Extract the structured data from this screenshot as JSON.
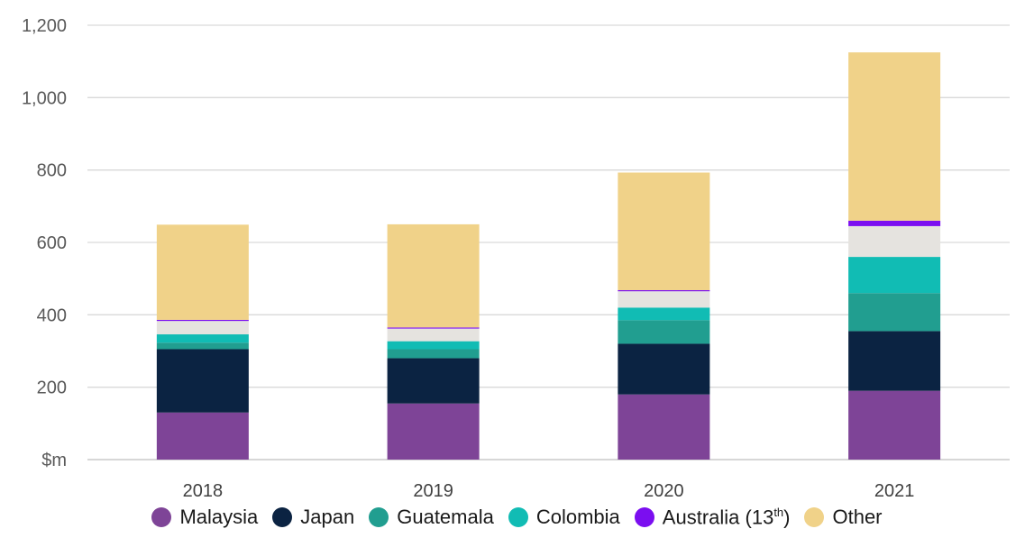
{
  "chart_data": {
    "type": "bar",
    "stacked": true,
    "categories": [
      "2018",
      "2019",
      "2020",
      "2021"
    ],
    "y_tick_labels": [
      "$m",
      "200",
      "400",
      "600",
      "800",
      "1,000",
      "1,200"
    ],
    "y_ticks": [
      0,
      200,
      400,
      600,
      800,
      1000,
      1200
    ],
    "ylim": [
      0,
      1200
    ],
    "grid": true,
    "legend_position": "bottom",
    "series": [
      {
        "name": "Malaysia",
        "color": "#7e4497",
        "values": [
          130,
          155,
          180,
          190
        ]
      },
      {
        "name": "Japan",
        "color": "#0b2342",
        "values": [
          175,
          125,
          140,
          165
        ]
      },
      {
        "name": "Guatemala",
        "color": "#219e90",
        "values": [
          18,
          25,
          65,
          105
        ]
      },
      {
        "name": "Colombia",
        "color": "#11bcb4",
        "values": [
          23,
          22,
          35,
          100
        ]
      },
      {
        "name": "",
        "color": "#e5e3df",
        "values": [
          37,
          35,
          45,
          85
        ]
      },
      {
        "name": "Australia (13th)",
        "color": "#7b0ef0",
        "values": [
          3,
          3,
          3,
          15
        ]
      },
      {
        "name": "Other",
        "color": "#f0d289",
        "values": [
          263,
          285,
          325,
          465
        ]
      }
    ]
  },
  "legend": {
    "items": [
      {
        "label": "Malaysia",
        "color": "#7e4497"
      },
      {
        "label": "Japan",
        "color": "#0b2342"
      },
      {
        "label": "Guatemala",
        "color": "#219e90"
      },
      {
        "label": "Colombia",
        "color": "#11bcb4"
      },
      {
        "label": "Australia (13",
        "sup": "th",
        "suffix": ")",
        "color": "#7b0ef0"
      },
      {
        "label": "Other",
        "color": "#f0d289"
      }
    ]
  }
}
